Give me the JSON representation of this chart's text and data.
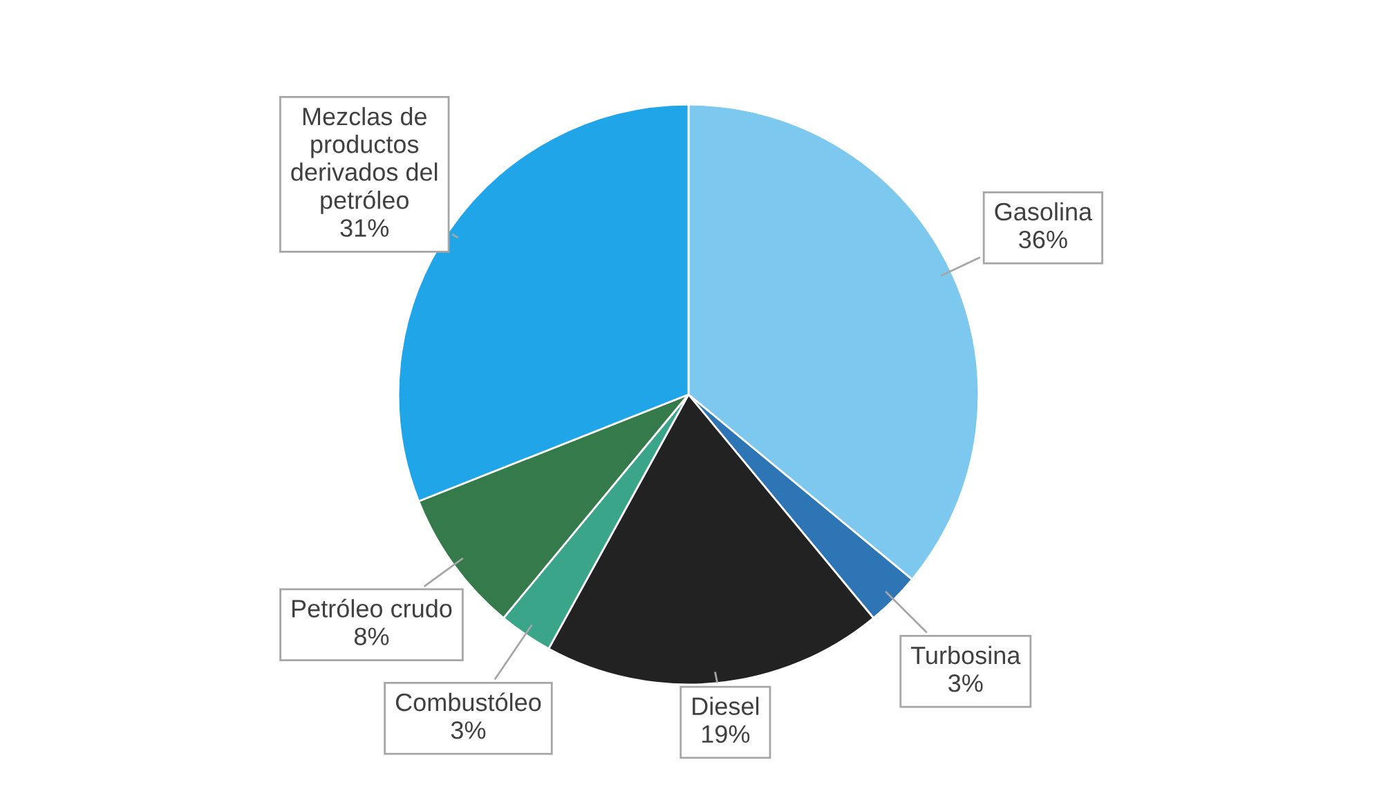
{
  "chart_data": {
    "type": "pie",
    "categories": [
      "Gasolina",
      "Turbosina",
      "Diesel",
      "Combustóleo",
      "Petróleo crudo",
      "Mezclas de\nproductos\nderivados del\npetróleo"
    ],
    "values": [
      36,
      3,
      19,
      3,
      8,
      31
    ],
    "value_labels": [
      "36%",
      "3%",
      "19%",
      "3%",
      "8%",
      "31%"
    ],
    "colors": [
      "#7cc8ee",
      "#2e75b6",
      "#222222",
      "#3ba58a",
      "#357a4a",
      "#1fa5e8"
    ],
    "legend": false
  }
}
